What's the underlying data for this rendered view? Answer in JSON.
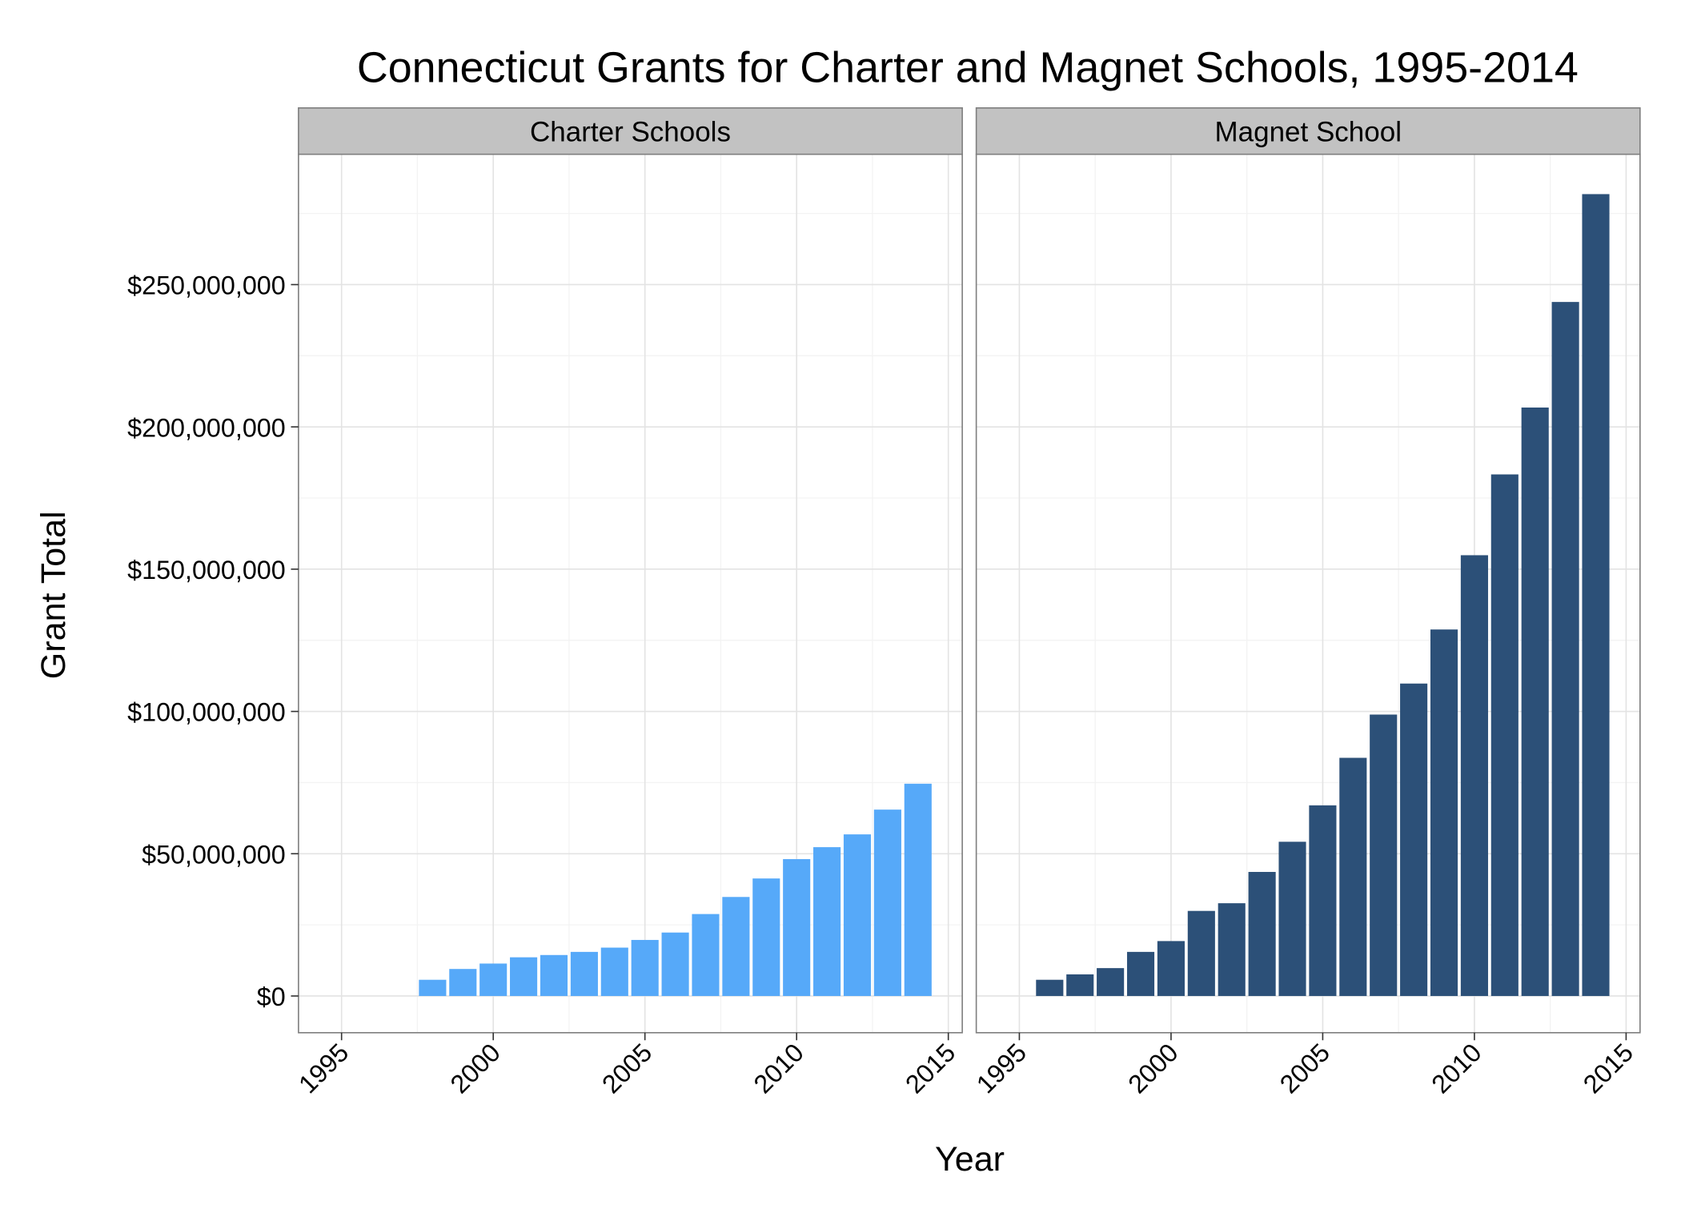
{
  "chart_data": {
    "type": "bar",
    "title": "Connecticut Grants for Charter and Magnet Schools, 1995-2014",
    "xlabel": "Year",
    "ylabel": "Grant Total",
    "xlim": [
      1993.58,
      2015.46
    ],
    "ylim": [
      -12900000,
      295800000
    ],
    "xticks": [
      1995,
      2000,
      2005,
      2010,
      2015
    ],
    "yticks": [
      {
        "value": 0,
        "label": "$0"
      },
      {
        "value": 50000000,
        "label": "$50,000,000"
      },
      {
        "value": 100000000,
        "label": "$100,000,000"
      },
      {
        "value": 150000000,
        "label": "$150,000,000"
      },
      {
        "value": 200000000,
        "label": "$200,000,000"
      },
      {
        "value": 250000000,
        "label": "$250,000,000"
      }
    ],
    "grid": true,
    "facets": [
      {
        "name": "Charter Schools",
        "color": "#56a9f9",
        "x": [
          1998,
          1999,
          2000,
          2001,
          2002,
          2003,
          2004,
          2005,
          2006,
          2007,
          2008,
          2009,
          2010,
          2011,
          2012,
          2013,
          2014
        ],
        "values": [
          5700000,
          9500000,
          11400000,
          13600000,
          14400000,
          15500000,
          17000000,
          19700000,
          22300000,
          28800000,
          34800000,
          41300000,
          48100000,
          52300000,
          56800000,
          65500000,
          74600000
        ]
      },
      {
        "name": "Magnet School",
        "color": "#2c5078",
        "x": [
          1996,
          1997,
          1998,
          1999,
          2000,
          2001,
          2002,
          2003,
          2004,
          2005,
          2006,
          2007,
          2008,
          2009,
          2010,
          2011,
          2012,
          2013,
          2014
        ],
        "values": [
          5700000,
          7600000,
          9800000,
          15500000,
          19300000,
          29900000,
          32600000,
          43600000,
          54200000,
          67000000,
          83700000,
          98900000,
          109800000,
          128800000,
          154900000,
          183300000,
          206800000,
          243900000,
          281800000
        ]
      }
    ]
  }
}
